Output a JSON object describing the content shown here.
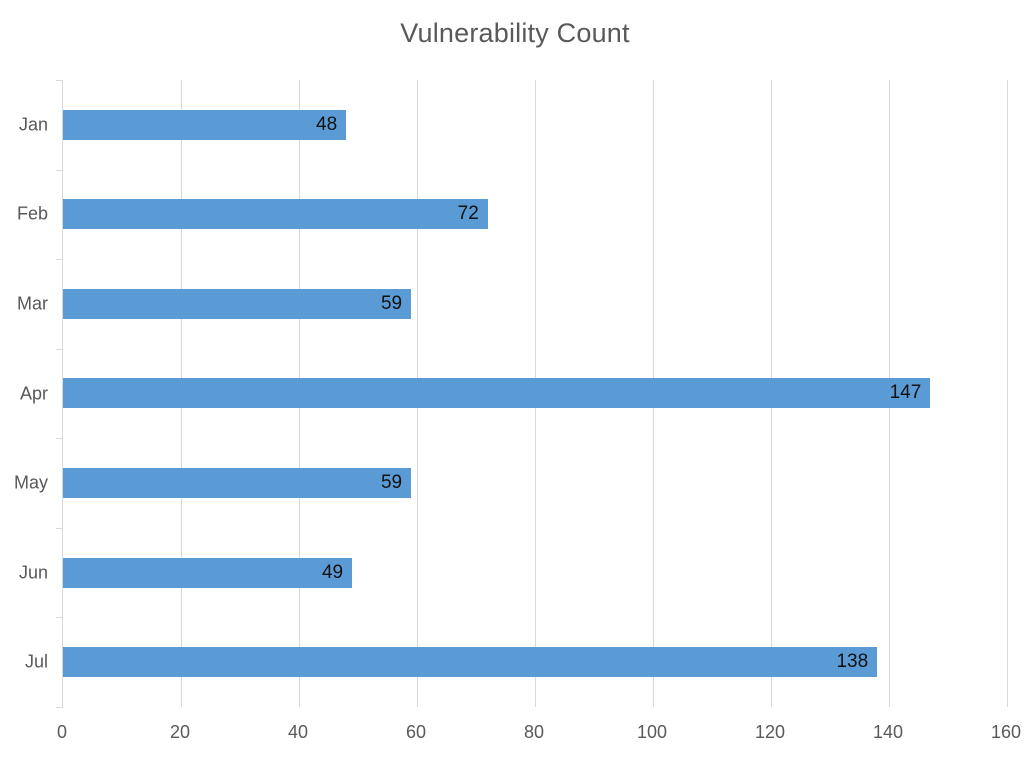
{
  "chart_data": {
    "type": "bar",
    "orientation": "horizontal",
    "title": "Vulnerability Count",
    "categories": [
      "Jan",
      "Feb",
      "Mar",
      "Apr",
      "May",
      "Jun",
      "Jul"
    ],
    "values": [
      48,
      72,
      59,
      147,
      59,
      49,
      138
    ],
    "xlabel": "",
    "ylabel": "",
    "xlim": [
      0,
      160
    ],
    "x_ticks": [
      0,
      20,
      40,
      60,
      80,
      100,
      120,
      140,
      160
    ],
    "grid": true,
    "legend": "none",
    "data_labels_position": "inside-end",
    "colors": {
      "bar": "#5b9bd5",
      "title_text": "#595959",
      "axis_text": "#595959",
      "data_label_text": "#111111",
      "gridline": "#d9d9d9",
      "axis_line": "#d9d9d9",
      "background": "#ffffff"
    }
  }
}
